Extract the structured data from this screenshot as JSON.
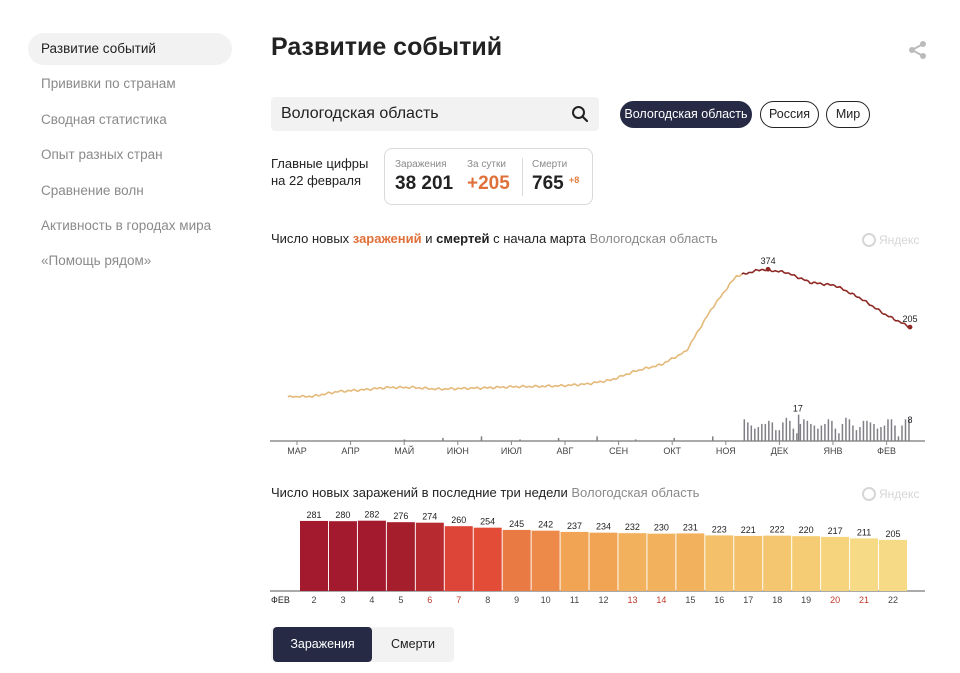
{
  "sidebar": {
    "items": [
      {
        "label": "Развитие событий",
        "active": true
      },
      {
        "label": "Прививки по странам"
      },
      {
        "label": "Сводная статистика"
      },
      {
        "label": "Опыт разных стран"
      },
      {
        "label": "Сравнение волн"
      },
      {
        "label": "Активность в городах мира"
      },
      {
        "label": "«Помощь рядом»"
      }
    ]
  },
  "header": {
    "title": "Развитие событий",
    "share_icon": "share-icon"
  },
  "search": {
    "value": "Вологодская область",
    "placeholder": ""
  },
  "regions": [
    {
      "label": "Вологодская область",
      "active": true
    },
    {
      "label": "Россия"
    },
    {
      "label": "Мир"
    }
  ],
  "key_figures": {
    "label_line1": "Главные цифры",
    "label_line2": "на 22 февраля",
    "infections_label": "Заражения",
    "infections_value": "38 201",
    "daily_label": "За сутки",
    "daily_value": "+205",
    "deaths_label": "Смерти",
    "deaths_value": "765",
    "deaths_delta": "+8"
  },
  "colors": {
    "accent_dark": "#262a45",
    "infection_orange": "#e0703a",
    "line_light": "#e4b97a",
    "line_dark": "#8e2a26",
    "deaths_bars": "#7f7f86"
  },
  "chart1": {
    "caption_1": "Число новых ",
    "caption_infections": "заражений",
    "caption_2": " и ",
    "caption_deaths": "смертей",
    "caption_3": " с начала марта",
    "caption_region": "Вологодская область",
    "watermark": "Яндекс"
  },
  "chart2": {
    "caption": "Число новых заражений в последние три недели",
    "caption_region": "Вологодская область",
    "watermark": "Яндекс"
  },
  "tabs": [
    {
      "label": "Заражения",
      "active": true
    },
    {
      "label": "Смерти"
    }
  ],
  "chart_data": [
    {
      "type": "line",
      "title": "Число новых заражений и смертей с начала марта",
      "x_ticks": [
        "МАР",
        "АПР",
        "МАЙ",
        "ИЮН",
        "ИЮЛ",
        "АВГ",
        "СЕН",
        "ОКТ",
        "НОЯ",
        "ДЕК",
        "ЯНВ",
        "ФЕВ"
      ],
      "infections_series": {
        "name": "заражений",
        "points": [
          [
            "Мар",
            0
          ],
          [
            "Апр",
            2
          ],
          [
            "Май",
            16
          ],
          [
            "Май",
            21
          ],
          [
            "Июн",
            28
          ],
          [
            "Июн",
            28
          ],
          [
            "Июл",
            23
          ],
          [
            "Июл",
            25
          ],
          [
            "Авг",
            27
          ],
          [
            "Авг",
            30
          ],
          [
            "Сен",
            31
          ],
          [
            "Сен",
            33
          ],
          [
            "Окт",
            38
          ],
          [
            "Окт",
            50
          ],
          [
            "Ноя",
            77
          ],
          [
            "Ноя",
            95
          ],
          [
            "Ноя",
            134
          ],
          [
            "Дек",
            256
          ],
          [
            "Дек",
            354
          ],
          [
            "Дек",
            374
          ],
          [
            "Дек",
            366
          ],
          [
            "Янв",
            336
          ],
          [
            "Янв",
            327
          ],
          [
            "Фев",
            290
          ],
          [
            "Фев",
            242
          ],
          [
            "Фев",
            205
          ]
        ],
        "labels": {
          "peak": 374,
          "last": 205
        }
      },
      "deaths_series": {
        "name": "смертей",
        "labels": {
          "peak": 17,
          "last": 8
        }
      }
    },
    {
      "type": "bar",
      "title": "Число новых заражений в последние три недели",
      "month_label": "ФЕВ",
      "categories": [
        "2",
        "3",
        "4",
        "5",
        "6",
        "7",
        "8",
        "9",
        "10",
        "11",
        "12",
        "13",
        "14",
        "15",
        "16",
        "17",
        "18",
        "19",
        "20",
        "21",
        "22"
      ],
      "weekend": [
        "6",
        "7",
        "13",
        "14",
        "20",
        "21"
      ],
      "values": [
        281,
        280,
        282,
        276,
        274,
        260,
        254,
        245,
        242,
        237,
        234,
        232,
        230,
        231,
        223,
        221,
        222,
        220,
        217,
        211,
        205
      ],
      "colors": [
        "#a3192d",
        "#a3192d",
        "#a3192d",
        "#a51e2c",
        "#b72a2f",
        "#dc4538",
        "#e34c36",
        "#ea7a44",
        "#ed8a49",
        "#f1a454",
        "#f1a454",
        "#f2b25d",
        "#f2b25d",
        "#f2b25d",
        "#f4c06a",
        "#f4c06a",
        "#f4c66f",
        "#f5cc74",
        "#f6d37d",
        "#f7da86",
        "#f7da86"
      ],
      "ylim": [
        0,
        300
      ]
    }
  ]
}
